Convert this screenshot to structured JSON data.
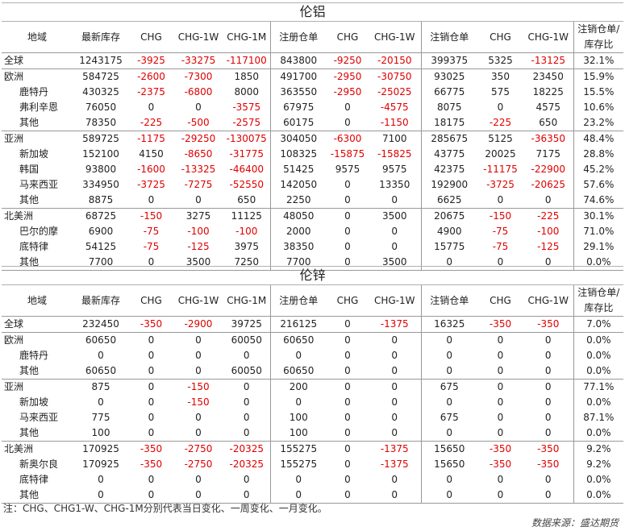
{
  "headers": [
    "地域",
    "最新库存",
    "CHG",
    "CHG-1W",
    "CHG-1M",
    "注册仓单",
    "CHG",
    "CHG-1W",
    "注销仓单",
    "CHG",
    "CHG-1W",
    "注销仓单/库存比"
  ],
  "tables": [
    {
      "title": "伦铝",
      "groups": [
        {
          "rows": [
            [
              "全球",
              "1243175",
              "-3925",
              "-33275",
              "-117100",
              "843800",
              "-9250",
              "-20150",
              "399375",
              "5325",
              "-13125",
              "32.1%"
            ]
          ]
        },
        {
          "rows": [
            [
              "欧洲",
              "584725",
              "-2600",
              "-7300",
              "1850",
              "491700",
              "-2950",
              "-30750",
              "93025",
              "350",
              "23450",
              "15.9%"
            ],
            [
              "鹿特丹",
              "430325",
              "-2375",
              "-6800",
              "8000",
              "363550",
              "-2950",
              "-25025",
              "66775",
              "575",
              "18225",
              "15.5%"
            ],
            [
              "弗利辛恩",
              "76050",
              "0",
              "0",
              "-3575",
              "67975",
              "0",
              "-4575",
              "8075",
              "0",
              "4575",
              "10.6%"
            ],
            [
              "其他",
              "78350",
              "-225",
              "-500",
              "-2575",
              "60175",
              "0",
              "-1150",
              "18175",
              "-225",
              "650",
              "23.2%"
            ]
          ]
        },
        {
          "rows": [
            [
              "亚洲",
              "589725",
              "-1175",
              "-29250",
              "-130075",
              "304050",
              "-6300",
              "7100",
              "285675",
              "5125",
              "-36350",
              "48.4%"
            ],
            [
              "新加坡",
              "152100",
              "4150",
              "-8650",
              "-31775",
              "108325",
              "-15875",
              "-15825",
              "43775",
              "20025",
              "7175",
              "28.8%"
            ],
            [
              "韩国",
              "93800",
              "-1600",
              "-13325",
              "-46400",
              "51425",
              "9575",
              "9575",
              "42375",
              "-11175",
              "-22900",
              "45.2%"
            ],
            [
              "马来西亚",
              "334950",
              "-3725",
              "-7275",
              "-52550",
              "142050",
              "0",
              "13350",
              "192900",
              "-3725",
              "-20625",
              "57.6%"
            ],
            [
              "其他",
              "8875",
              "0",
              "0",
              "650",
              "2250",
              "0",
              "0",
              "6625",
              "0",
              "0",
              "74.6%"
            ]
          ]
        },
        {
          "rows": [
            [
              "北美洲",
              "68725",
              "-150",
              "3275",
              "11125",
              "48050",
              "0",
              "3500",
              "20675",
              "-150",
              "-225",
              "30.1%"
            ],
            [
              "巴尔的摩",
              "6900",
              "-75",
              "-100",
              "-100",
              "2000",
              "0",
              "0",
              "4900",
              "-75",
              "-100",
              "71.0%"
            ],
            [
              "底特律",
              "54125",
              "-75",
              "-125",
              "3975",
              "38350",
              "0",
              "0",
              "15775",
              "-75",
              "-125",
              "29.1%"
            ],
            [
              "其他",
              "7700",
              "0",
              "3500",
              "7250",
              "7700",
              "0",
              "3500",
              "0",
              "0",
              "0",
              "0.0%"
            ]
          ]
        }
      ]
    },
    {
      "title": "伦锌",
      "groups": [
        {
          "rows": [
            [
              "全球",
              "232450",
              "-350",
              "-2900",
              "39725",
              "216125",
              "0",
              "-1375",
              "16325",
              "-350",
              "-350",
              "7.0%"
            ]
          ]
        },
        {
          "rows": [
            [
              "欧洲",
              "60650",
              "0",
              "0",
              "60050",
              "60650",
              "0",
              "0",
              "0",
              "0",
              "0",
              "0.0%"
            ],
            [
              "鹿特丹",
              "0",
              "0",
              "0",
              "0",
              "0",
              "0",
              "0",
              "0",
              "0",
              "0",
              "0.0%"
            ],
            [
              "其他",
              "60650",
              "0",
              "0",
              "60050",
              "60650",
              "0",
              "0",
              "0",
              "0",
              "0",
              "0.0%"
            ]
          ]
        },
        {
          "rows": [
            [
              "亚洲",
              "875",
              "0",
              "-150",
              "0",
              "200",
              "0",
              "0",
              "675",
              "0",
              "0",
              "77.1%"
            ],
            [
              "新加坡",
              "0",
              "0",
              "-150",
              "0",
              "0",
              "0",
              "0",
              "0",
              "0",
              "0",
              "0.0%"
            ],
            [
              "马来西亚",
              "775",
              "0",
              "0",
              "0",
              "100",
              "0",
              "0",
              "675",
              "0",
              "0",
              "87.1%"
            ],
            [
              "其他",
              "100",
              "0",
              "0",
              "0",
              "100",
              "0",
              "0",
              "0",
              "0",
              "0",
              "0.0%"
            ]
          ]
        },
        {
          "rows": [
            [
              "北美洲",
              "170925",
              "-350",
              "-2750",
              "-20325",
              "155275",
              "0",
              "-1375",
              "15650",
              "-350",
              "-350",
              "9.2%"
            ],
            [
              "新奥尔良",
              "170925",
              "-350",
              "-2750",
              "-20325",
              "155275",
              "0",
              "-1375",
              "15650",
              "-350",
              "-350",
              "9.2%"
            ],
            [
              "底特律",
              "0",
              "0",
              "0",
              "0",
              "0",
              "0",
              "0",
              "0",
              "0",
              "0",
              "0.0%"
            ],
            [
              "其他",
              "0",
              "0",
              "0",
              "0",
              "0",
              "0",
              "0",
              "0",
              "0",
              "0",
              "0.0%"
            ]
          ]
        }
      ]
    }
  ],
  "note": "注：CHG、CHG1-W、CHG-1M分别代表当日变化、一周变化、一月变化。",
  "source": "数据来源：盛达期货",
  "colors": {
    "negative": "#e00000",
    "text": "#222222",
    "border": "#999999"
  }
}
